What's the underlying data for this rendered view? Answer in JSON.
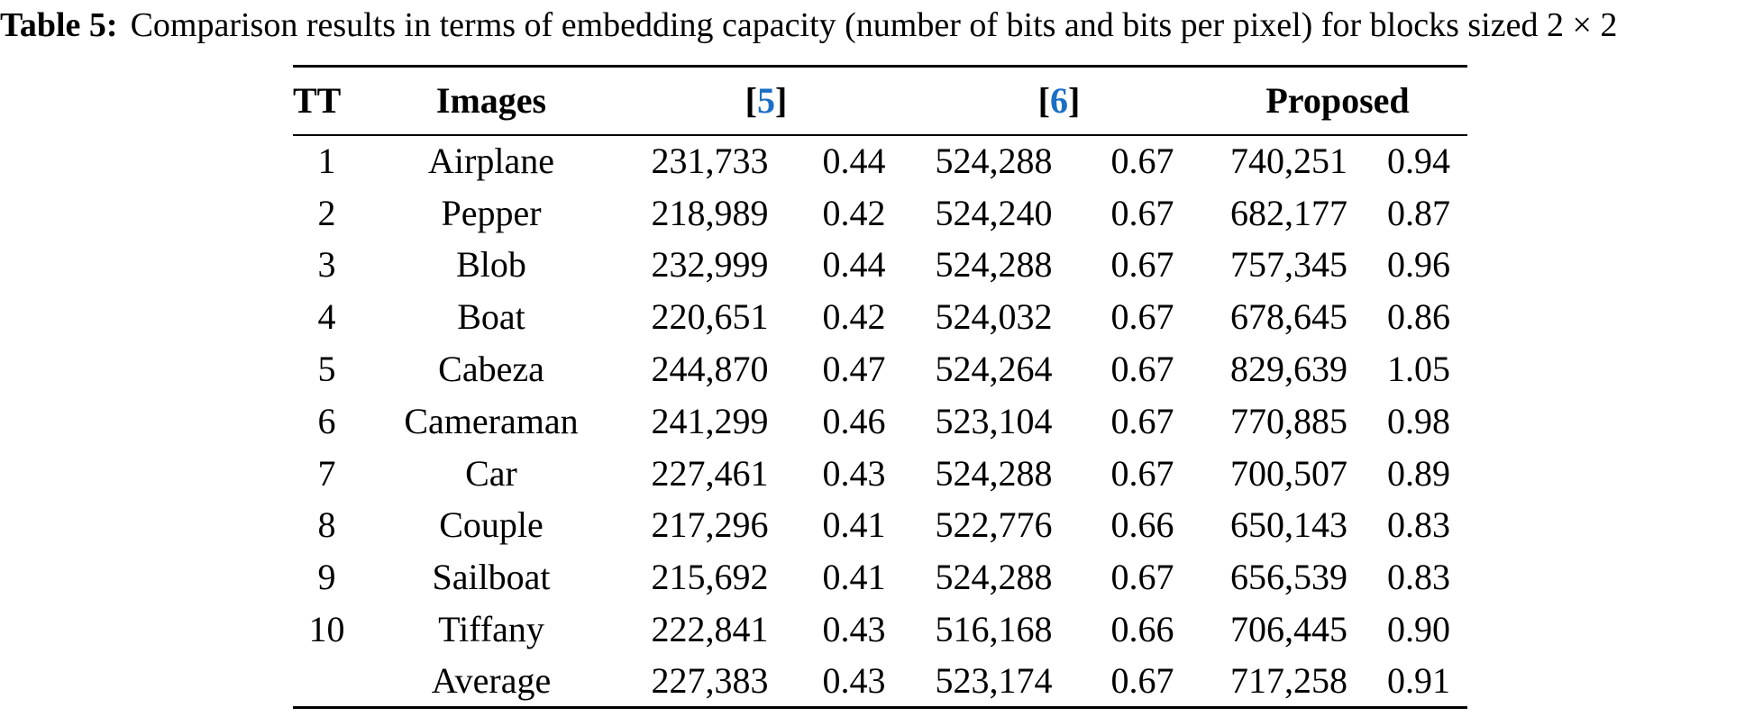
{
  "title": {
    "label": "Table 5:",
    "text": "Comparison results in terms of embedding capacity (number of bits and bits per pixel) for blocks sized 2 × 2"
  },
  "table": {
    "header": {
      "tt": "TT",
      "images": "Images",
      "ref5": {
        "open": "[",
        "num": "5",
        "close": "]"
      },
      "ref6": {
        "open": "[",
        "num": "6",
        "close": "]"
      },
      "proposed": "Proposed"
    },
    "citation_color": "#1b6fc4",
    "column_keys": [
      "tt",
      "image",
      "ref5_bits",
      "ref5_bpp",
      "ref6_bits",
      "ref6_bpp",
      "prop_bits",
      "prop_bpp"
    ],
    "rows": [
      {
        "tt": "1",
        "image": "Airplane",
        "ref5_bits": "231,733",
        "ref5_bpp": "0.44",
        "ref6_bits": "524,288",
        "ref6_bpp": "0.67",
        "prop_bits": "740,251",
        "prop_bpp": "0.94"
      },
      {
        "tt": "2",
        "image": "Pepper",
        "ref5_bits": "218,989",
        "ref5_bpp": "0.42",
        "ref6_bits": "524,240",
        "ref6_bpp": "0.67",
        "prop_bits": "682,177",
        "prop_bpp": "0.87"
      },
      {
        "tt": "3",
        "image": "Blob",
        "ref5_bits": "232,999",
        "ref5_bpp": "0.44",
        "ref6_bits": "524,288",
        "ref6_bpp": "0.67",
        "prop_bits": "757,345",
        "prop_bpp": "0.96"
      },
      {
        "tt": "4",
        "image": "Boat",
        "ref5_bits": "220,651",
        "ref5_bpp": "0.42",
        "ref6_bits": "524,032",
        "ref6_bpp": "0.67",
        "prop_bits": "678,645",
        "prop_bpp": "0.86"
      },
      {
        "tt": "5",
        "image": "Cabeza",
        "ref5_bits": "244,870",
        "ref5_bpp": "0.47",
        "ref6_bits": "524,264",
        "ref6_bpp": "0.67",
        "prop_bits": "829,639",
        "prop_bpp": "1.05"
      },
      {
        "tt": "6",
        "image": "Cameraman",
        "ref5_bits": "241,299",
        "ref5_bpp": "0.46",
        "ref6_bits": "523,104",
        "ref6_bpp": "0.67",
        "prop_bits": "770,885",
        "prop_bpp": "0.98"
      },
      {
        "tt": "7",
        "image": "Car",
        "ref5_bits": "227,461",
        "ref5_bpp": "0.43",
        "ref6_bits": "524,288",
        "ref6_bpp": "0.67",
        "prop_bits": "700,507",
        "prop_bpp": "0.89"
      },
      {
        "tt": "8",
        "image": "Couple",
        "ref5_bits": "217,296",
        "ref5_bpp": "0.41",
        "ref6_bits": "522,776",
        "ref6_bpp": "0.66",
        "prop_bits": "650,143",
        "prop_bpp": "0.83"
      },
      {
        "tt": "9",
        "image": "Sailboat",
        "ref5_bits": "215,692",
        "ref5_bpp": "0.41",
        "ref6_bits": "524,288",
        "ref6_bpp": "0.67",
        "prop_bits": "656,539",
        "prop_bpp": "0.83"
      },
      {
        "tt": "10",
        "image": "Tiffany",
        "ref5_bits": "222,841",
        "ref5_bpp": "0.43",
        "ref6_bits": "516,168",
        "ref6_bpp": "0.66",
        "prop_bits": "706,445",
        "prop_bpp": "0.90"
      },
      {
        "tt": "",
        "image": "Average",
        "ref5_bits": "227,383",
        "ref5_bpp": "0.43",
        "ref6_bits": "523,174",
        "ref6_bpp": "0.67",
        "prop_bits": "717,258",
        "prop_bpp": "0.91"
      }
    ]
  }
}
